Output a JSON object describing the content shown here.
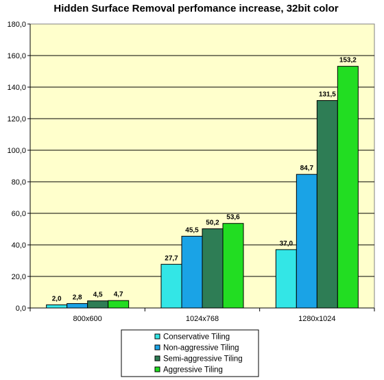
{
  "chart_data": {
    "type": "bar",
    "title": "Hidden Surface Removal perfomance increase, 32bit color",
    "xlabel": "",
    "ylabel": "",
    "categories": [
      "800x600",
      "1024x768",
      "1280x1024"
    ],
    "ylim": [
      0,
      180
    ],
    "ytick_step": 20,
    "ytick_labels": [
      "0,0",
      "20,0",
      "40,0",
      "60,0",
      "80,0",
      "100,0",
      "120,0",
      "140,0",
      "160,0",
      "180,0"
    ],
    "grid": "horizontal",
    "legend_position": "bottom",
    "plot_background": "#ffffcc",
    "series": [
      {
        "name": "Conservative Tiling",
        "color": "#33e6e6",
        "values": [
          2.0,
          27.7,
          37.0
        ],
        "labels": [
          "2,0",
          "27,7",
          "37,0"
        ]
      },
      {
        "name": "Non-aggressive Tiling",
        "color": "#1aa3e6",
        "values": [
          2.8,
          45.5,
          84.7
        ],
        "labels": [
          "2,8",
          "45,5",
          "84,7"
        ]
      },
      {
        "name": "Semi-aggressive Tiling",
        "color": "#2e7d55",
        "values": [
          4.5,
          50.2,
          131.5
        ],
        "labels": [
          "4,5",
          "50,2",
          "131,5"
        ]
      },
      {
        "name": "Aggressive Tiling",
        "color": "#22dd22",
        "values": [
          4.7,
          53.6,
          153.2
        ],
        "labels": [
          "4,7",
          "53,6",
          "153,2"
        ]
      }
    ]
  }
}
